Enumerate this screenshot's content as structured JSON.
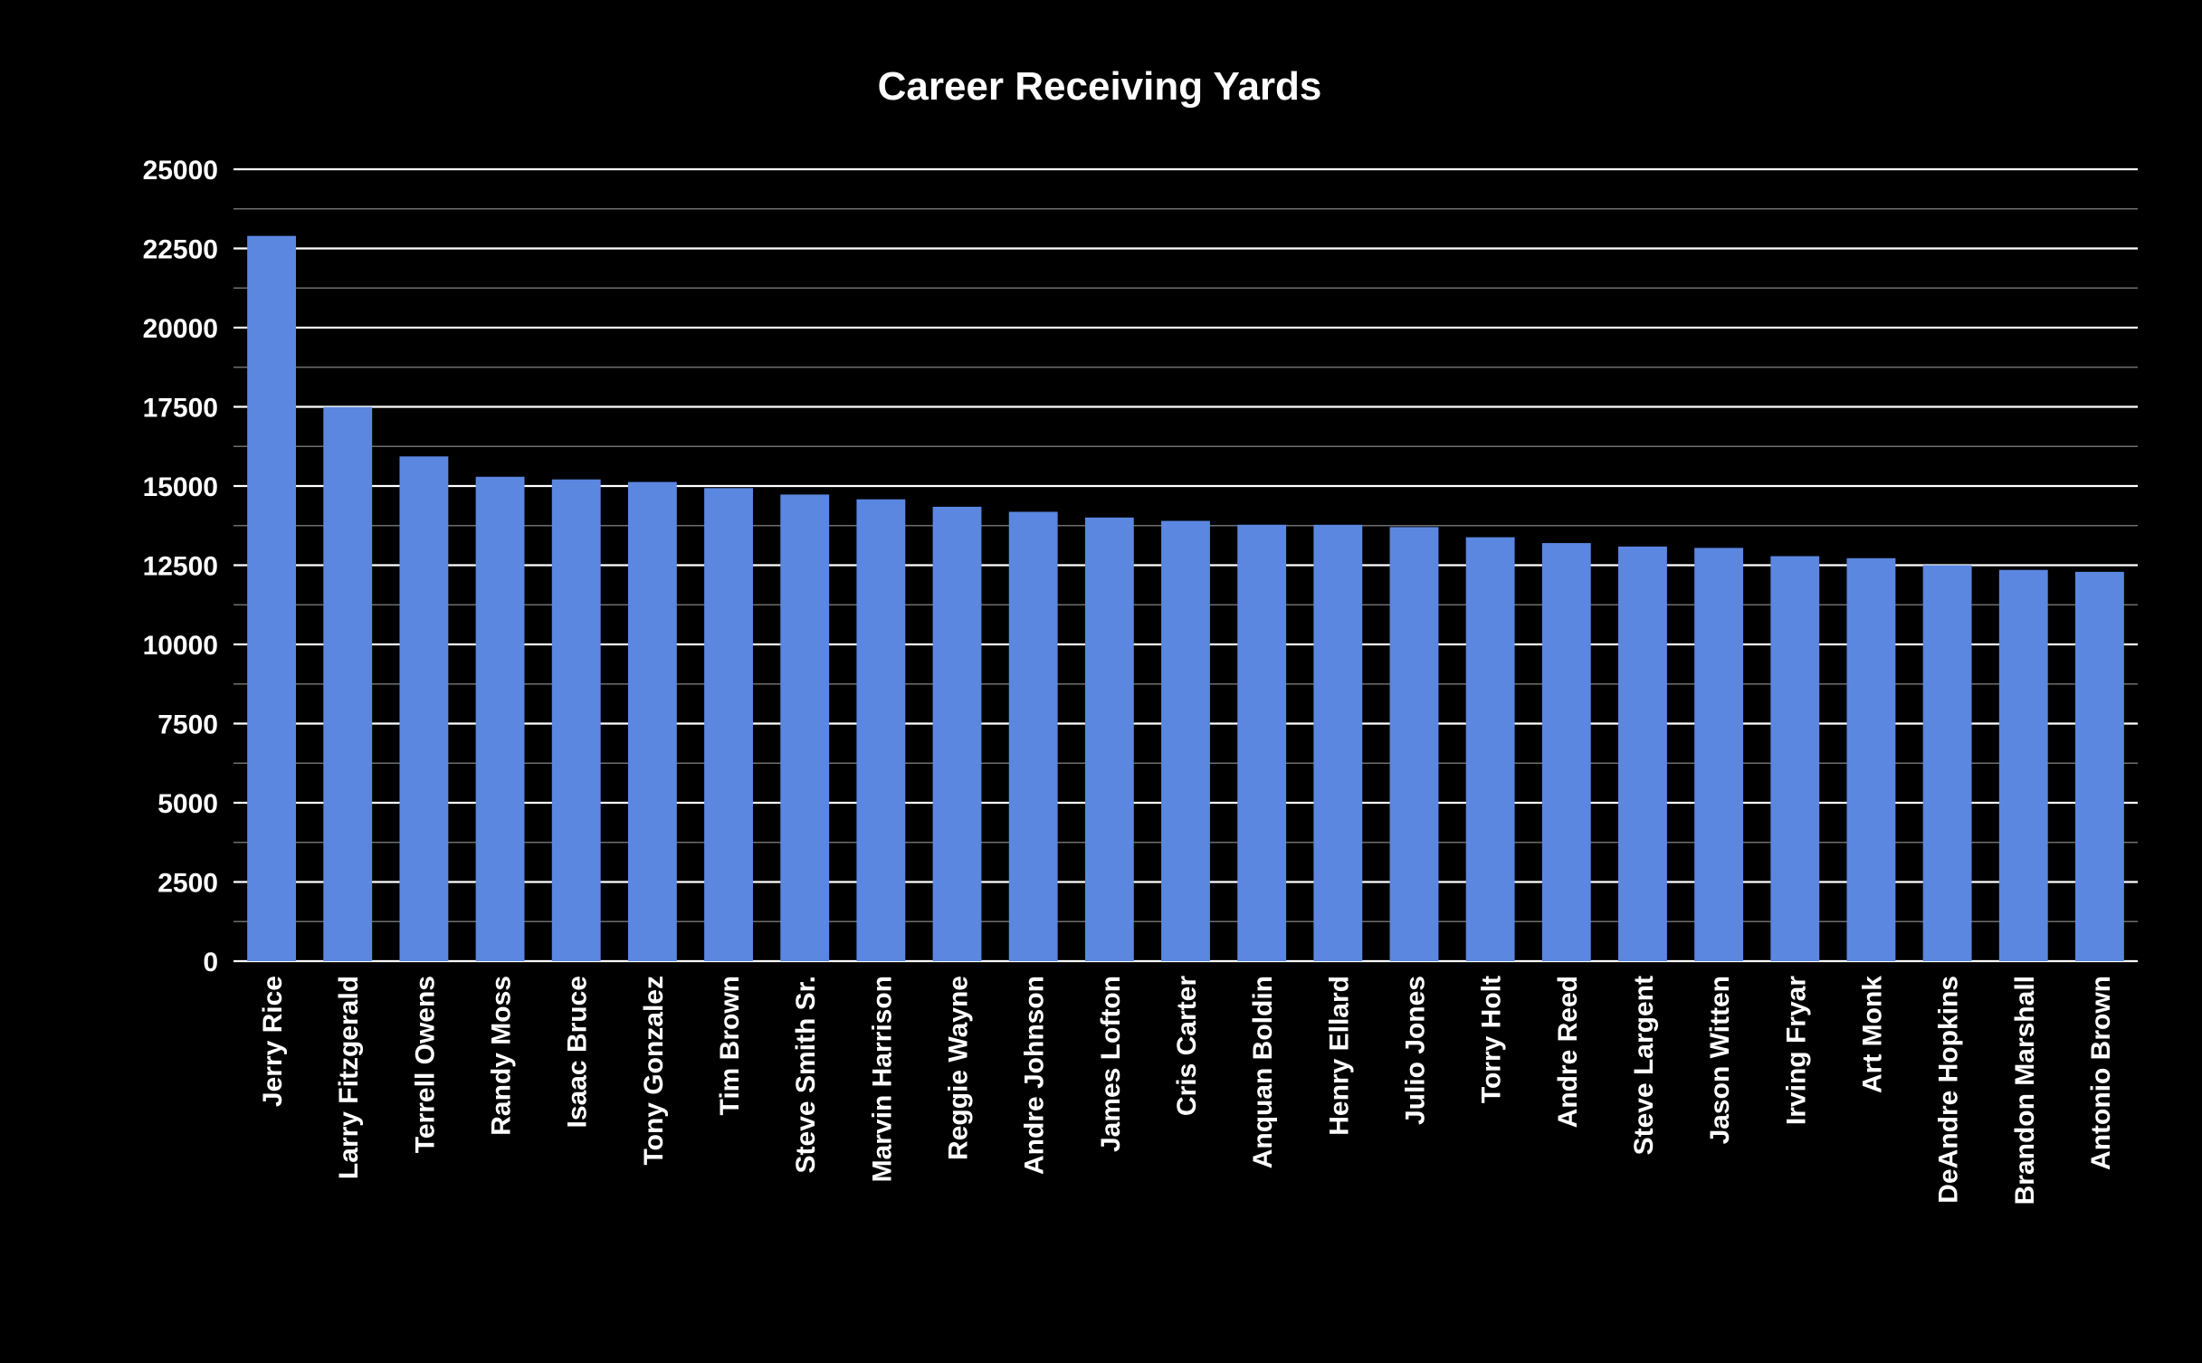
{
  "chart_data": {
    "type": "bar",
    "title": "Career Receiving Yards",
    "xlabel": "",
    "ylabel": "",
    "ylim": [
      0,
      25000
    ],
    "yticks": [
      "0",
      "2500",
      "5000",
      "7500",
      "10000",
      "12500",
      "15000",
      "17500",
      "20000",
      "22500",
      "25000"
    ],
    "ytick_values": [
      0,
      2500,
      5000,
      7500,
      10000,
      12500,
      15000,
      17500,
      20000,
      22500,
      25000
    ],
    "minor_gridlines": true,
    "legend": "none",
    "categories": [
      "Jerry Rice",
      "Larry Fitzgerald",
      "Terrell Owens",
      "Randy Moss",
      "Isaac Bruce",
      "Tony Gonzalez",
      "Tim Brown",
      "Steve Smith Sr.",
      "Marvin Harrison",
      "Reggie Wayne",
      "Andre Johnson",
      "James Lofton",
      "Cris Carter",
      "Anquan Boldin",
      "Henry Ellard",
      "Julio Jones",
      "Torry Holt",
      "Andre Reed",
      "Steve Largent",
      "Jason Witten",
      "Irving Fryar",
      "Art Monk",
      "DeAndre Hopkins",
      "Brandon Marshall",
      "Antonio Brown"
    ],
    "values": [
      22895,
      17492,
      15934,
      15292,
      15208,
      15127,
      14934,
      14731,
      14580,
      14345,
      14185,
      14004,
      13899,
      13779,
      13777,
      13703,
      13382,
      13198,
      13089,
      13046,
      12785,
      12721,
      12500,
      12351,
      12291
    ],
    "colors": {
      "background": "#000000",
      "bar": "#5b87e0",
      "text": "#ffffff",
      "major_grid": "#ffffff",
      "minor_grid": "#6e6e6e"
    }
  }
}
